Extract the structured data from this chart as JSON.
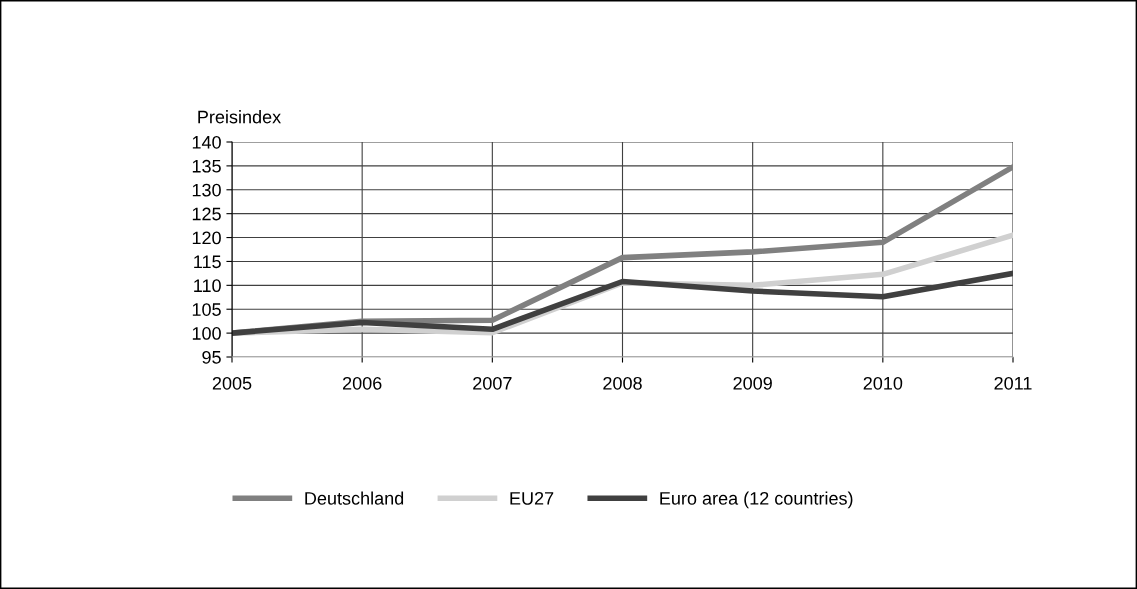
{
  "chart_data": {
    "type": "line",
    "ylabel": "Preisindex",
    "x": [
      2005,
      2006,
      2007,
      2008,
      2009,
      2010,
      2011
    ],
    "xlim": [
      2005,
      2011
    ],
    "xticks": [
      2005,
      2006,
      2007,
      2008,
      2009,
      2010,
      2011
    ],
    "ylim": [
      95,
      140
    ],
    "yticks": [
      95,
      100,
      105,
      110,
      115,
      120,
      125,
      130,
      135,
      140
    ],
    "grid": true,
    "legend": "bottom",
    "marker": "none",
    "line_style": "solid",
    "series": [
      {
        "name": "Deutschland",
        "color": "#808080",
        "values": [
          100,
          102.5,
          102.7,
          115.8,
          117,
          119,
          134.8
        ]
      },
      {
        "name": "EU27",
        "color": "#d0d0d0",
        "values": [
          100,
          100.8,
          100.1,
          110.5,
          110,
          112.3,
          120.5
        ]
      },
      {
        "name": "Euro area (12 countries)",
        "color": "#404040",
        "values": [
          100,
          102.2,
          100.8,
          110.8,
          108.8,
          107.6,
          112.5
        ]
      }
    ]
  }
}
